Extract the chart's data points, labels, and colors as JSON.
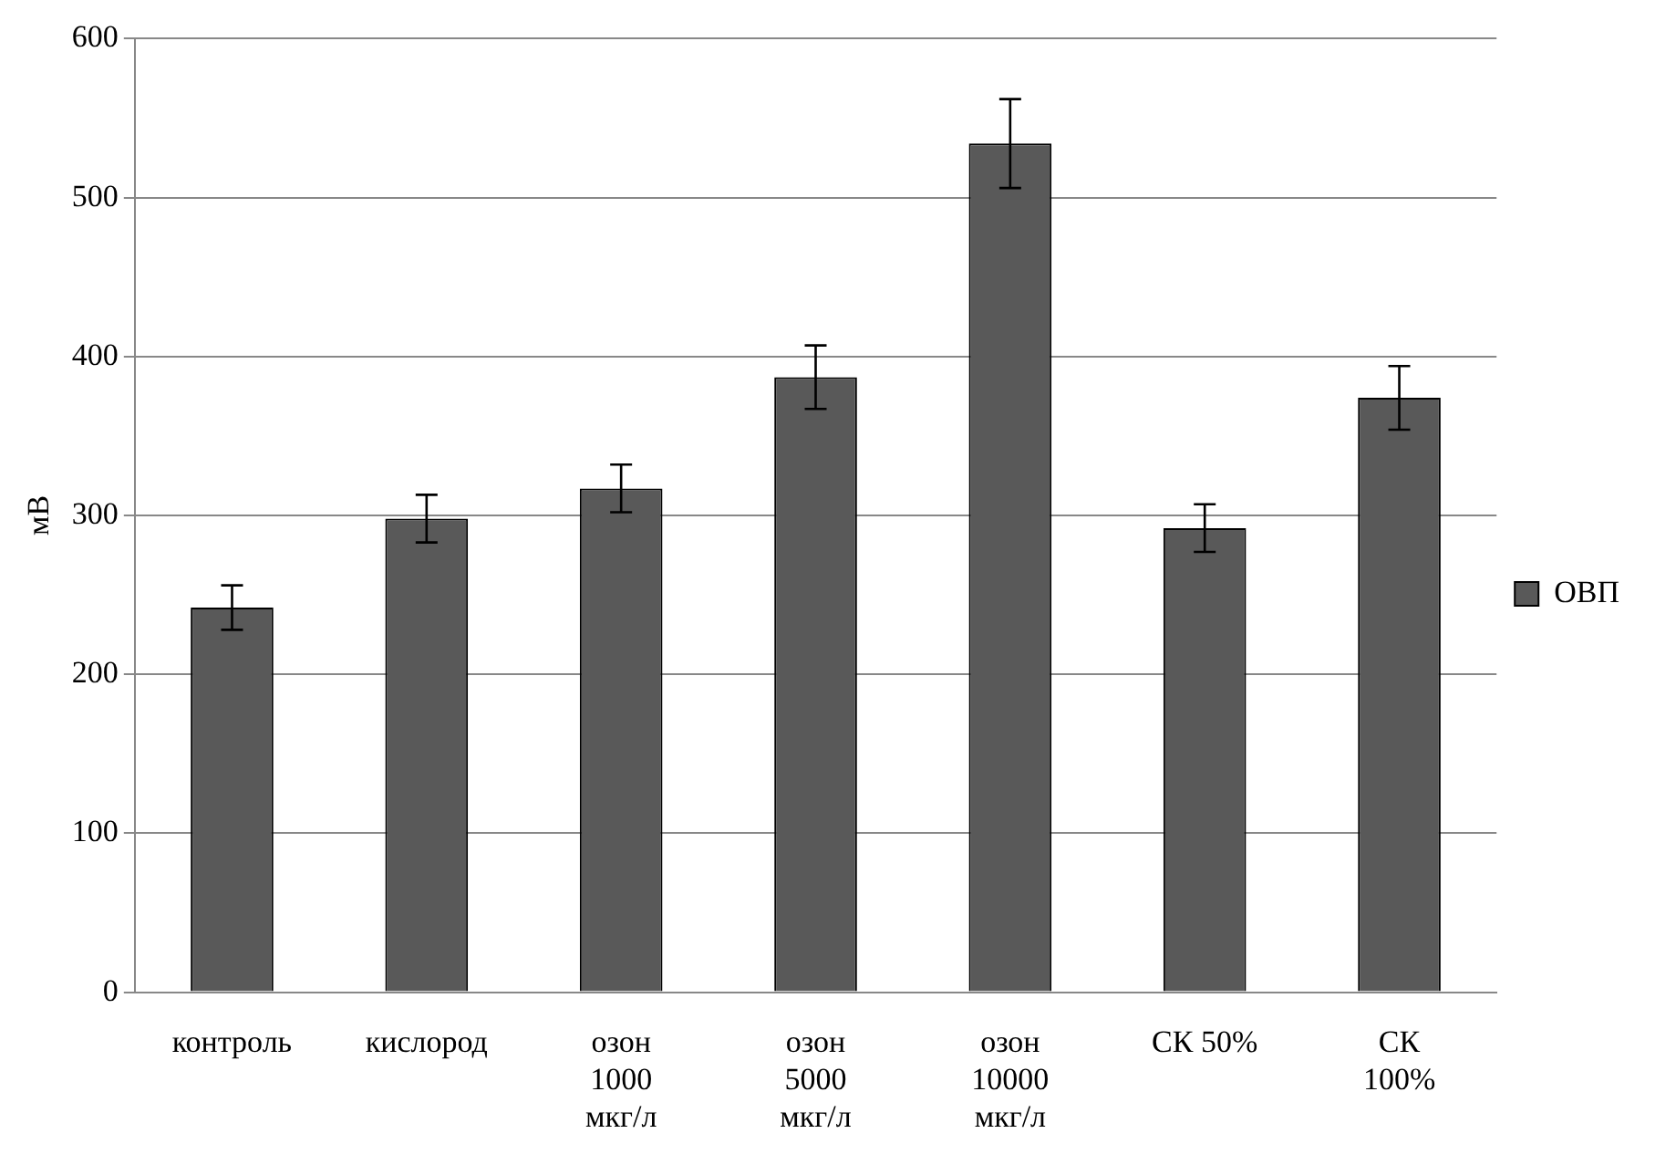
{
  "chart_data": {
    "type": "bar",
    "ylabel": "мВ",
    "categories": [
      "контроль",
      "кислород",
      "озон\n1000\nмкг/л",
      "озон\n5000\nмкг/л",
      "озон\n10000\nмкг/л",
      "СК 50%",
      "СК\n100%"
    ],
    "series": [
      {
        "name": "ОВП",
        "color": "#595959",
        "values": [
          242,
          298,
          317,
          387,
          534,
          292,
          374
        ],
        "errors": [
          14,
          15,
          15,
          20,
          28,
          15,
          20
        ]
      }
    ],
    "ylim": [
      0,
      600
    ],
    "yticks": [
      0,
      100,
      200,
      300,
      400,
      500,
      600
    ],
    "grid": "y",
    "legend": "right"
  }
}
